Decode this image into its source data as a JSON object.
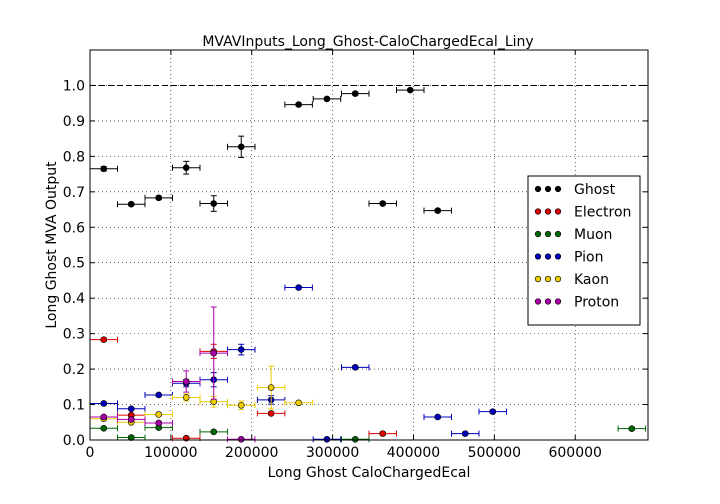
{
  "chart_data": {
    "type": "scatter",
    "title": "MVAVInputs_Long_Ghost-CaloChargedEcal_Liny",
    "xlabel": "Long Ghost CaloChargedEcal",
    "ylabel": "Long Ghost MVA Output",
    "xlim": [
      0,
      690000
    ],
    "ylim": [
      0,
      1.1
    ],
    "xticks": [
      0,
      100000,
      200000,
      300000,
      400000,
      500000,
      600000
    ],
    "xtick_labels": [
      "0",
      "100000",
      "200000",
      "300000",
      "400000",
      "500000",
      "600000"
    ],
    "yticks": [
      0.0,
      0.1,
      0.2,
      0.3,
      0.4,
      0.5,
      0.6,
      0.7,
      0.8,
      0.9,
      1.0
    ],
    "ytick_labels": [
      "0.0",
      "0.1",
      "0.2",
      "0.3",
      "0.4",
      "0.5",
      "0.6",
      "0.7",
      "0.8",
      "0.9",
      "1.0"
    ],
    "grid": true,
    "reference_line": 1.0,
    "legend_position": "right",
    "x_error": 17000,
    "series": [
      {
        "name": "Ghost",
        "color": "#000000",
        "points": [
          {
            "x": 17000,
            "y": 0.765,
            "e": 0.006
          },
          {
            "x": 51000,
            "y": 0.665,
            "e": 0.004
          },
          {
            "x": 85000,
            "y": 0.683,
            "e": 0.005
          },
          {
            "x": 119000,
            "y": 0.768,
            "e": 0.018
          },
          {
            "x": 153000,
            "y": 0.667,
            "e": 0.022
          },
          {
            "x": 187000,
            "y": 0.827,
            "e": 0.03
          },
          {
            "x": 258000,
            "y": 0.946,
            "e": 0.004
          },
          {
            "x": 293000,
            "y": 0.962,
            "e": 0.004
          },
          {
            "x": 328000,
            "y": 0.977,
            "e": 0.004
          },
          {
            "x": 396000,
            "y": 0.987,
            "e": 0.003
          },
          {
            "x": 362000,
            "y": 0.667,
            "e": 0.004
          },
          {
            "x": 430000,
            "y": 0.647,
            "e": 0.004
          }
        ]
      },
      {
        "name": "Electron",
        "color": "#dd0000",
        "points": [
          {
            "x": 17000,
            "y": 0.283,
            "e": 0.004
          },
          {
            "x": 51000,
            "y": 0.07,
            "e": 0.004
          },
          {
            "x": 119000,
            "y": 0.005,
            "e": 0.004
          },
          {
            "x": 153000,
            "y": 0.25,
            "e": 0.02
          },
          {
            "x": 224000,
            "y": 0.075,
            "e": 0.004
          },
          {
            "x": 362000,
            "y": 0.018,
            "e": 0.004
          }
        ]
      },
      {
        "name": "Muon",
        "color": "#006600",
        "points": [
          {
            "x": 17000,
            "y": 0.033,
            "e": 0.003
          },
          {
            "x": 51000,
            "y": 0.007,
            "e": 0.003
          },
          {
            "x": 85000,
            "y": 0.035,
            "e": 0.003
          },
          {
            "x": 153000,
            "y": 0.023,
            "e": 0.003
          },
          {
            "x": 328000,
            "y": 0.002,
            "e": 0.003
          },
          {
            "x": 670000,
            "y": 0.032,
            "e": 0.003
          }
        ]
      },
      {
        "name": "Pion",
        "color": "#0000bb",
        "points": [
          {
            "x": 17000,
            "y": 0.103,
            "e": 0.003
          },
          {
            "x": 51000,
            "y": 0.088,
            "e": 0.003
          },
          {
            "x": 85000,
            "y": 0.127,
            "e": 0.003
          },
          {
            "x": 119000,
            "y": 0.16,
            "e": 0.01
          },
          {
            "x": 153000,
            "y": 0.17,
            "e": 0.02
          },
          {
            "x": 187000,
            "y": 0.255,
            "e": 0.015
          },
          {
            "x": 224000,
            "y": 0.113,
            "e": 0.012
          },
          {
            "x": 258000,
            "y": 0.43,
            "e": 0.004
          },
          {
            "x": 328000,
            "y": 0.205,
            "e": 0.004
          },
          {
            "x": 293000,
            "y": 0.002,
            "e": 0.004
          },
          {
            "x": 430000,
            "y": 0.065,
            "e": 0.004
          },
          {
            "x": 464000,
            "y": 0.018,
            "e": 0.004
          },
          {
            "x": 498000,
            "y": 0.08,
            "e": 0.004
          }
        ]
      },
      {
        "name": "Kaon",
        "color": "#eecc00",
        "points": [
          {
            "x": 17000,
            "y": 0.06,
            "e": 0.004
          },
          {
            "x": 51000,
            "y": 0.05,
            "e": 0.004
          },
          {
            "x": 85000,
            "y": 0.072,
            "e": 0.004
          },
          {
            "x": 119000,
            "y": 0.12,
            "e": 0.01
          },
          {
            "x": 153000,
            "y": 0.108,
            "e": 0.015
          },
          {
            "x": 187000,
            "y": 0.098,
            "e": 0.012
          },
          {
            "x": 224000,
            "y": 0.148,
            "e": 0.06
          },
          {
            "x": 258000,
            "y": 0.105,
            "e": 0.004
          }
        ]
      },
      {
        "name": "Proton",
        "color": "#aa00aa",
        "points": [
          {
            "x": 17000,
            "y": 0.065,
            "e": 0.004
          },
          {
            "x": 51000,
            "y": 0.058,
            "e": 0.004
          },
          {
            "x": 85000,
            "y": 0.048,
            "e": 0.004
          },
          {
            "x": 119000,
            "y": 0.165,
            "e": 0.03
          },
          {
            "x": 153000,
            "y": 0.245,
            "e": 0.13
          },
          {
            "x": 187000,
            "y": 0.002,
            "e": 0.004
          }
        ]
      }
    ]
  }
}
